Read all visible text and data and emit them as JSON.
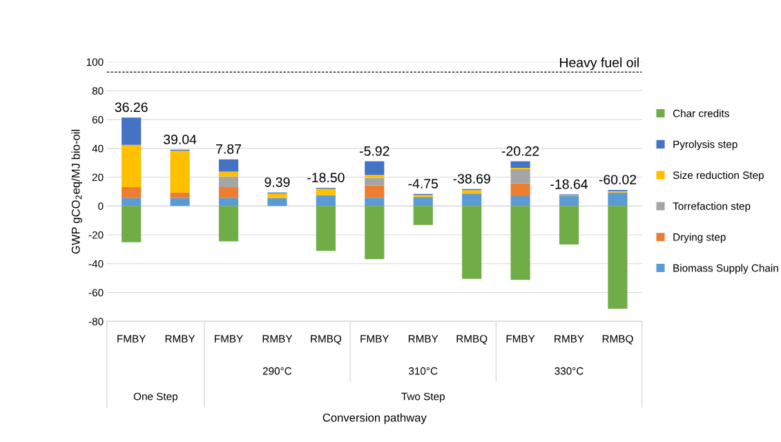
{
  "chart_data": {
    "type": "bar",
    "stacked": true,
    "categories": [
      "FMBY",
      "RMBY",
      "FMBY",
      "RMBY",
      "RMBQ",
      "FMBY",
      "RMBY",
      "RMBQ",
      "FMBY",
      "RMBY",
      "RMBQ"
    ],
    "series": [
      {
        "name": "Biomass Supply Chain",
        "color": "#5b9bd5",
        "values": [
          5.5,
          5.5,
          5.5,
          5.5,
          7.6,
          5.8,
          6.3,
          8.7,
          6.8,
          6.9,
          9.4
        ]
      },
      {
        "name": "Drying step",
        "color": "#ed7d31",
        "values": [
          7.6,
          3.9,
          7.6,
          0,
          0,
          8.5,
          0,
          0,
          8.8,
          0,
          0
        ]
      },
      {
        "name": "Torrefaction step",
        "color": "#a5a5a5",
        "values": [
          0,
          0,
          7.4,
          0,
          0,
          5.2,
          0,
          0,
          9.9,
          0,
          0
        ]
      },
      {
        "name": "Size reduction Step",
        "color": "#ffc000",
        "values": [
          29.3,
          29.0,
          3.4,
          3.29,
          4.4,
          2.1,
          1.4,
          2.3,
          1.0,
          0.6,
          0.9
        ]
      },
      {
        "name": "Pyrolysis step",
        "color": "#4472c4",
        "values": [
          19.0,
          0.64,
          8.5,
          0.6,
          0.6,
          9.4,
          0.7,
          0.8,
          4.5,
          0.5,
          0.9
        ]
      },
      {
        "name": "Char credits",
        "color": "#70ad47",
        "values": [
          -25.14,
          0,
          -24.53,
          0,
          -31.1,
          -36.92,
          -13.15,
          -50.49,
          -51.22,
          -26.64,
          -71.22
        ]
      }
    ],
    "totals": [
      "36.26",
      "39.04",
      "7.87",
      "9.39",
      "-18.50",
      "-5.92",
      "-4.75",
      "-38.69",
      "-20.22",
      "-18.64",
      "-60.02"
    ],
    "ylim": [
      -80,
      100
    ],
    "yticks": [
      -80,
      -60,
      -40,
      -20,
      0,
      20,
      40,
      60,
      80,
      100
    ],
    "ylabel": "GWP gCO$_{2}$eq/MJ bio-oil",
    "ref_lines": [
      {
        "axis": "y",
        "value": 92.9,
        "label": "Heavy fuel oil",
        "color": "#000000",
        "line_style": "dashed"
      }
    ],
    "annotations": [
      "290°C",
      "310°C",
      "330°C",
      "One Step",
      "Two Step",
      "Conversion pathway"
    ],
    "grid": "y",
    "legend": "right"
  }
}
